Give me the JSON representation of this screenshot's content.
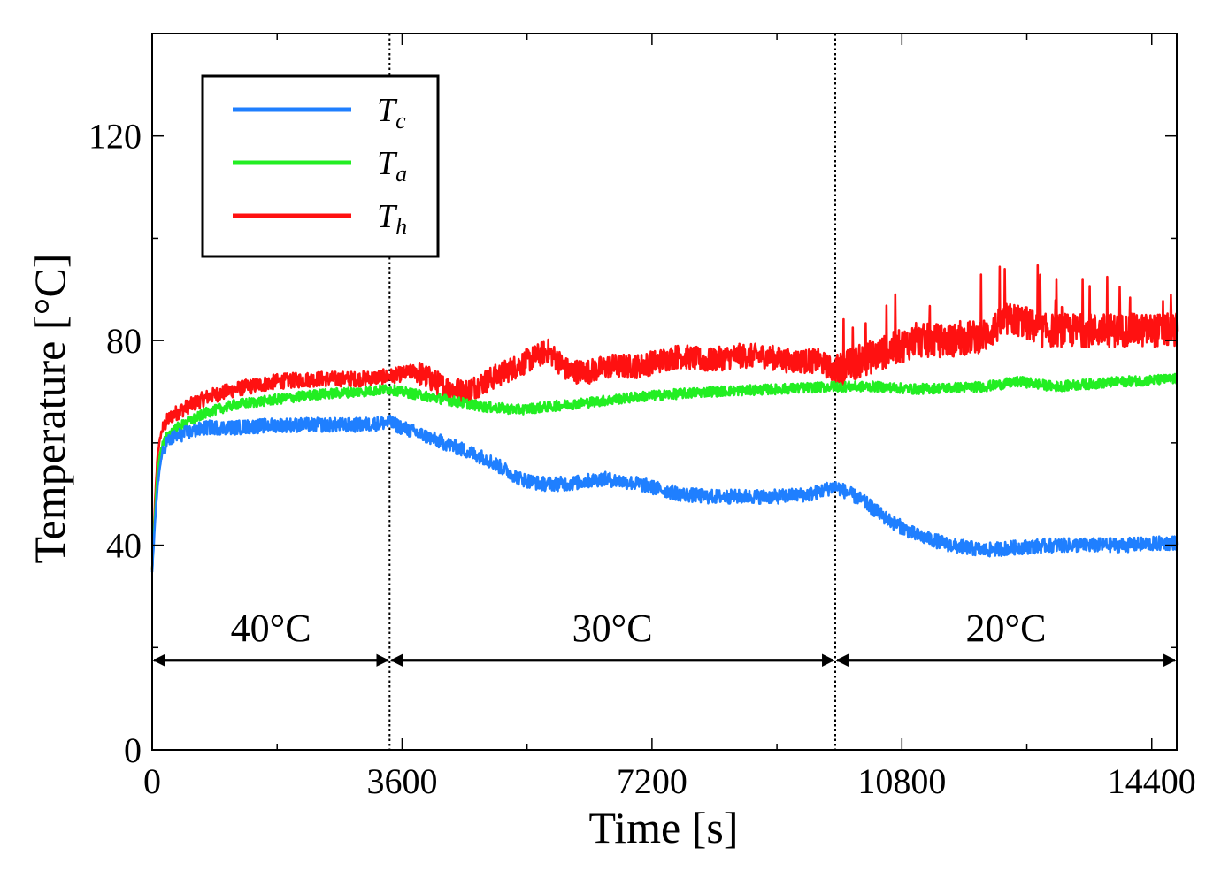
{
  "chart_data": {
    "type": "line",
    "title": "",
    "xlabel": "Time [s]",
    "ylabel": "Temperature [°C]",
    "xlim": [
      0,
      14760
    ],
    "ylim": [
      0,
      140
    ],
    "xticks": [
      0,
      3600,
      7200,
      10800,
      14400
    ],
    "xtick_labels": [
      "0",
      "3600",
      "7200",
      "10800",
      "14400"
    ],
    "xminor_step": 1800,
    "yticks": [
      0,
      40,
      80,
      120
    ],
    "ytick_labels": [
      "0",
      "40",
      "80",
      "120"
    ],
    "yminor_step": 20,
    "grid": false,
    "legend_position": "top-left",
    "legend": [
      {
        "base": "T",
        "sub": "c",
        "color": "#1f7fff"
      },
      {
        "base": "T",
        "sub": "a",
        "color": "#22ee22"
      },
      {
        "base": "T",
        "sub": "h",
        "color": "#ff1111"
      }
    ],
    "vlines": [
      3420,
      9840
    ],
    "regions": [
      {
        "label": "40°C",
        "x_start": 0,
        "x_end": 3420
      },
      {
        "label": "30°C",
        "x_start": 3420,
        "x_end": 9840
      },
      {
        "label": "20°C",
        "x_start": 9840,
        "x_end": 14760
      }
    ],
    "region_arrow_y": 17.5,
    "series": [
      {
        "name": "T_c",
        "color": "#1f7fff",
        "noise": 1.4,
        "x": [
          0,
          40,
          80,
          130,
          200,
          300,
          500,
          800,
          1200,
          1800,
          2400,
          3000,
          3420,
          3600,
          4200,
          4800,
          5300,
          5600,
          6000,
          6500,
          7000,
          7300,
          7600,
          8000,
          8500,
          9000,
          9500,
          9840,
          10200,
          10600,
          11000,
          11500,
          12000,
          12400,
          13000,
          13500,
          14000,
          14760
        ],
        "y": [
          35,
          44,
          52,
          57,
          60,
          61,
          62,
          63,
          63,
          63.5,
          63.5,
          63.5,
          64,
          63,
          60,
          57,
          53,
          52,
          52,
          53,
          52,
          51,
          50,
          49.5,
          49.5,
          49.5,
          50,
          51.5,
          49,
          45,
          42,
          40,
          39,
          39.5,
          40,
          40,
          40,
          40.5
        ]
      },
      {
        "name": "T_a",
        "color": "#22ee22",
        "noise": 1.0,
        "x": [
          0,
          40,
          80,
          130,
          200,
          300,
          500,
          800,
          1200,
          1800,
          2400,
          3000,
          3420,
          3600,
          4200,
          4800,
          5300,
          6000,
          7000,
          8000,
          9000,
          9840,
          10400,
          11000,
          12000,
          12500,
          13000,
          14000,
          14760
        ],
        "y": [
          35,
          46,
          55,
          59,
          61,
          62.5,
          64,
          66,
          67.5,
          68.5,
          69.5,
          70,
          70.5,
          70,
          68.5,
          67,
          66.5,
          67.5,
          69,
          70,
          70.5,
          71,
          71,
          70.5,
          71,
          72,
          71,
          72,
          72.5
        ]
      },
      {
        "name": "T_h",
        "color": "#ff1111",
        "noise": 1.5,
        "x": [
          0,
          40,
          80,
          130,
          200,
          300,
          500,
          800,
          1200,
          1800,
          2400,
          3000,
          3420,
          3800,
          4200,
          4500,
          4800,
          5100,
          5400,
          5700,
          6000,
          6300,
          6600,
          7000,
          7300,
          7600,
          8000,
          8400,
          8800,
          9200,
          9600,
          9840,
          10200,
          10600,
          11000,
          11500,
          12000,
          12300,
          12500,
          12800,
          13200,
          13600,
          14000,
          14400,
          14760
        ],
        "y": [
          35,
          48,
          58,
          62,
          64,
          65.5,
          67,
          69,
          70.5,
          72,
          72.5,
          72.5,
          73,
          74,
          71,
          70,
          72,
          74,
          76,
          78,
          74,
          74,
          75,
          75,
          76,
          77,
          76,
          77,
          77,
          76,
          76,
          74,
          76,
          78,
          80,
          80,
          81,
          84,
          84,
          82,
          82,
          82,
          82,
          82,
          82
        ]
      }
    ]
  }
}
